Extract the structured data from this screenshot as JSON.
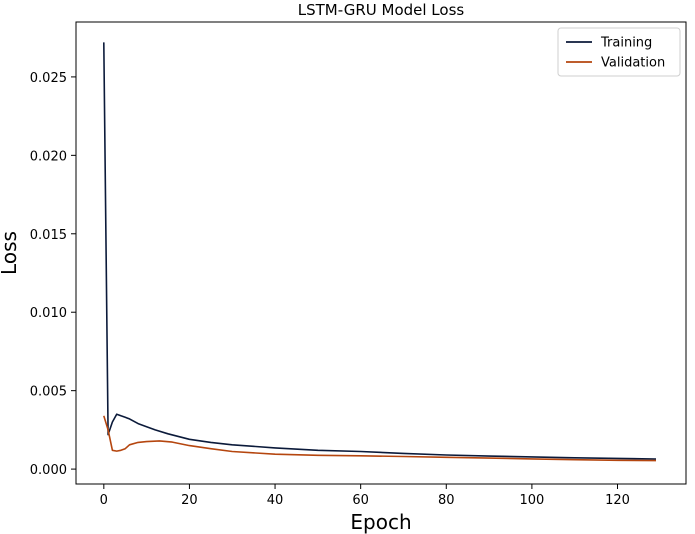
{
  "chart_data": {
    "type": "line",
    "title": "LSTM-GRU Model Loss",
    "xlabel": "Epoch",
    "ylabel": "Loss",
    "xlim": [
      -6.5,
      136
    ],
    "ylim": [
      -0.00095,
      0.0285
    ],
    "xticks": [
      0,
      20,
      40,
      60,
      80,
      100,
      120
    ],
    "xtick_labels": [
      "0",
      "20",
      "40",
      "60",
      "80",
      "100",
      "120"
    ],
    "yticks": [
      0.0,
      0.005,
      0.01,
      0.015,
      0.02,
      0.025
    ],
    "ytick_labels": [
      "0.000",
      "0.005",
      "0.010",
      "0.015",
      "0.020",
      "0.025"
    ],
    "grid": false,
    "legend_position": "top-right",
    "series": [
      {
        "name": "Training",
        "color": "#0b1a3a",
        "x": [
          0,
          1,
          2,
          3,
          4,
          5,
          6,
          8,
          10,
          12,
          15,
          20,
          25,
          30,
          40,
          50,
          60,
          70,
          80,
          90,
          100,
          110,
          120,
          129
        ],
        "y": [
          0.0272,
          0.0022,
          0.003,
          0.0035,
          0.0034,
          0.0033,
          0.0032,
          0.0029,
          0.0027,
          0.0025,
          0.00225,
          0.0019,
          0.0017,
          0.00155,
          0.00135,
          0.0012,
          0.00112,
          0.001,
          0.0009,
          0.00083,
          0.00078,
          0.00072,
          0.00068,
          0.00064
        ]
      },
      {
        "name": "Validation",
        "color": "#b5460f",
        "x": [
          0,
          1,
          2,
          3,
          4,
          5,
          6,
          8,
          10,
          13,
          16,
          20,
          25,
          30,
          40,
          50,
          60,
          70,
          80,
          90,
          100,
          110,
          120,
          129
        ],
        "y": [
          0.0034,
          0.0025,
          0.0012,
          0.00115,
          0.0012,
          0.0013,
          0.00155,
          0.0017,
          0.00175,
          0.0018,
          0.00172,
          0.0015,
          0.0013,
          0.00112,
          0.00095,
          0.00088,
          0.00085,
          0.0008,
          0.00075,
          0.0007,
          0.00065,
          0.0006,
          0.00056,
          0.00054
        ]
      }
    ]
  }
}
